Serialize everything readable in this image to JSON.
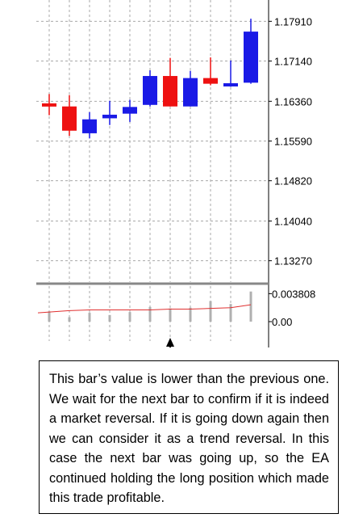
{
  "chart_data": {
    "type": "candlestick",
    "price_axis": {
      "ticks": [
        "1.17910",
        "1.17140",
        "1.16360",
        "1.15590",
        "1.14820",
        "1.14040",
        "1.13270"
      ],
      "range": [
        1.1292,
        1.1826
      ]
    },
    "candles": [
      {
        "open": 1.1632,
        "high": 1.165,
        "low": 1.1609,
        "close": 1.1627,
        "color": "#ee1111"
      },
      {
        "open": 1.1626,
        "high": 1.1648,
        "low": 1.1569,
        "close": 1.1579,
        "color": "#ee1111"
      },
      {
        "open": 1.1574,
        "high": 1.1615,
        "low": 1.1564,
        "close": 1.1601,
        "color": "#1a1ae6"
      },
      {
        "open": 1.1603,
        "high": 1.1637,
        "low": 1.159,
        "close": 1.161,
        "color": "#1a1ae6"
      },
      {
        "open": 1.1612,
        "high": 1.1639,
        "low": 1.1596,
        "close": 1.1625,
        "color": "#1a1ae6"
      },
      {
        "open": 1.1629,
        "high": 1.1696,
        "low": 1.1626,
        "close": 1.1685,
        "color": "#1a1ae6"
      },
      {
        "open": 1.1685,
        "high": 1.172,
        "low": 1.1626,
        "close": 1.1626,
        "color": "#ee1111"
      },
      {
        "open": 1.1626,
        "high": 1.1695,
        "low": 1.1626,
        "close": 1.1681,
        "color": "#1a1ae6"
      },
      {
        "open": 1.1681,
        "high": 1.1721,
        "low": 1.1667,
        "close": 1.167,
        "color": "#ee1111"
      },
      {
        "open": 1.1667,
        "high": 1.1715,
        "low": 1.1664,
        "close": 1.1671,
        "color": "#1a1ae6"
      },
      {
        "open": 1.1672,
        "high": 1.1796,
        "low": 1.167,
        "close": 1.1771,
        "color": "#1a1ae6"
      }
    ],
    "indicator": {
      "ticks": [
        "0.003808",
        "0.00"
      ],
      "range": [
        0,
        0.0044
      ],
      "histogram": [
        0.0014,
        0.0006,
        0.0012,
        0.0009,
        0.0013,
        0.002,
        0.0018,
        0.0019,
        0.0028,
        0.0024,
        0.0041
      ],
      "line": [
        0.0012,
        0.0015,
        0.0016,
        0.0016,
        0.0016,
        0.0016,
        0.0017,
        0.0017,
        0.0018,
        0.0019,
        0.0023
      ],
      "line_color": "#e03030",
      "hist_color": "#b0b0b0"
    },
    "highlight_index": 6
  },
  "callout": {
    "text": "This bar’s value is lower than the previous one. We wait for the next bar to confirm if it is indeed a market reversal. If it is going down again then we can consider it as a trend reversal. In this case the next bar was going up, so the EA continued holding the long position which made this trade profitable."
  }
}
